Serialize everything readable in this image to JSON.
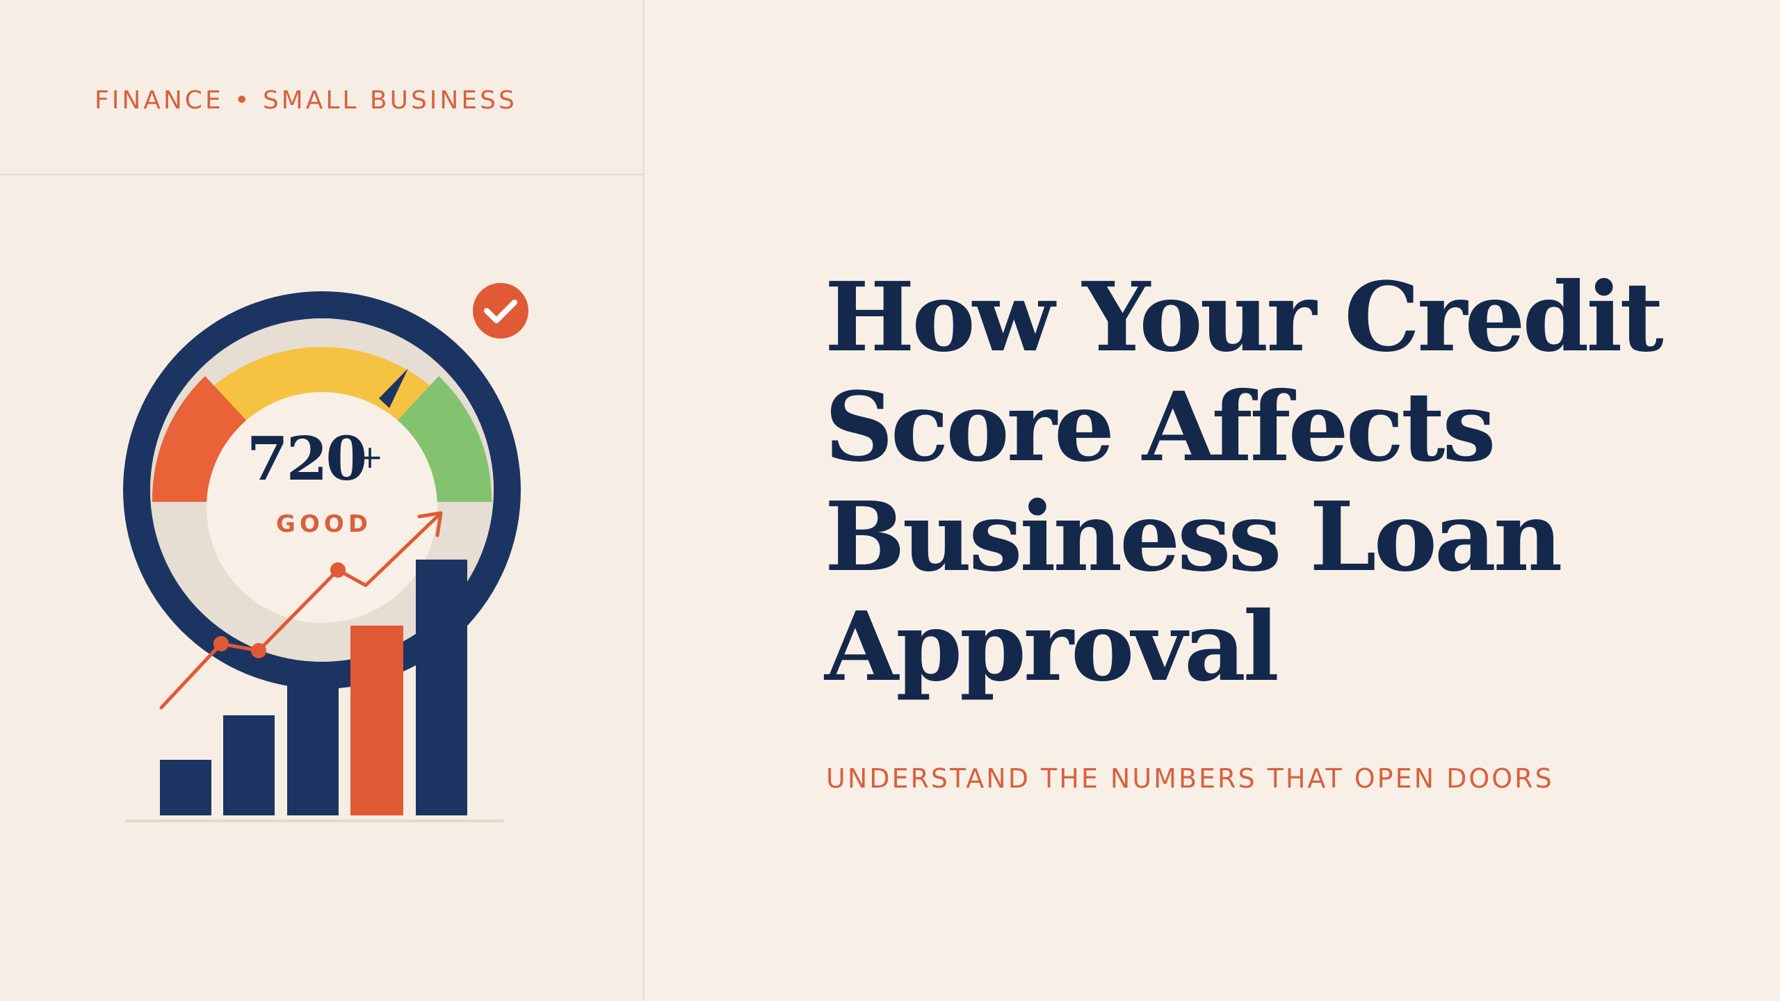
{
  "category": "FINANCE • SMALL BUSINESS",
  "title": "How Your Credit Score Affects Business Loan Approval",
  "subtitle": "UNDERSTAND THE NUMBERS THAT OPEN DOORS",
  "gauge": {
    "score": "720",
    "score_suffix": "+",
    "rating": "GOOD"
  },
  "icons": [
    "credit-gauge-icon",
    "check-badge-icon",
    "growth-bar-chart-icon",
    "trend-arrow-icon"
  ],
  "colors": {
    "background": "#f8f0e7",
    "navy": "#1c3461",
    "accent": "#e05a35",
    "yellow": "#f5c242",
    "green": "#83c36f",
    "red": "#ea6238"
  }
}
